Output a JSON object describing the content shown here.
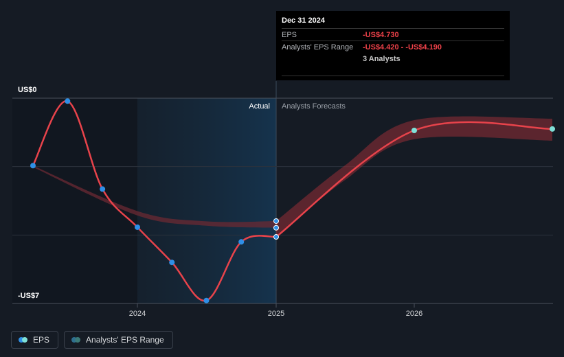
{
  "chart_data": {
    "type": "line",
    "y_top_label": "US$0",
    "y_bottom_label": "-US$7",
    "ylim": [
      -7,
      0
    ],
    "xlim": [
      "2023-04-01",
      "2026-12-31"
    ],
    "x_ticks": [
      "2024",
      "2025",
      "2026"
    ],
    "region_labels": {
      "actual": "Actual",
      "forecast": "Analysts Forecasts"
    },
    "series": [
      {
        "name": "EPS",
        "color": "#e8434b",
        "points": [
          {
            "x": "2023-03-31",
            "y": -2.3
          },
          {
            "x": "2023-06-30",
            "y": -0.1
          },
          {
            "x": "2023-09-30",
            "y": -3.1
          },
          {
            "x": "2023-12-31",
            "y": -4.4
          },
          {
            "x": "2024-03-31",
            "y": -5.6
          },
          {
            "x": "2024-06-30",
            "y": -6.9
          },
          {
            "x": "2024-09-30",
            "y": -4.9
          },
          {
            "x": "2024-12-31",
            "y": -4.73
          }
        ]
      },
      {
        "name": "EPS forecast",
        "color": "#e8434b",
        "points": [
          {
            "x": "2024-12-31",
            "y": -4.73
          },
          {
            "x": "2025-12-31",
            "y": -1.1
          },
          {
            "x": "2026-12-31",
            "y": -1.05
          }
        ]
      }
    ],
    "analyst_range": {
      "name": "Analysts' EPS Range",
      "color": "#8a2d36",
      "history": [
        {
          "x": "2023-03-31",
          "high": -2.3,
          "low": -2.35
        },
        {
          "x": "2023-12-31",
          "high": -3.85,
          "low": -4.0
        },
        {
          "x": "2024-06-30",
          "high": -4.2,
          "low": -4.35
        },
        {
          "x": "2024-12-31",
          "high": -4.19,
          "low": -4.42
        }
      ],
      "forecast": [
        {
          "x": "2024-12-31",
          "high": -4.19,
          "low": -4.73
        },
        {
          "x": "2025-06-30",
          "high": -2.3,
          "low": -2.8
        },
        {
          "x": "2025-12-31",
          "high": -0.75,
          "low": -1.4
        },
        {
          "x": "2026-12-31",
          "high": -0.7,
          "low": -1.45
        }
      ]
    },
    "highlight_points": [
      -4.19,
      -4.42,
      -4.73
    ]
  },
  "tooltip": {
    "date": "Dec 31 2024",
    "rows": [
      {
        "label": "EPS",
        "value": "-US$4.730"
      },
      {
        "label": "Analysts' EPS Range",
        "value": "-US$4.420 - -US$4.190"
      },
      {
        "label": "",
        "value": "3 Analysts"
      }
    ]
  },
  "legend": [
    {
      "label": "EPS",
      "colors": [
        "#2f8fe6",
        "#7fe0d8"
      ]
    },
    {
      "label": "Analysts' EPS Range",
      "colors": [
        "#2e6f8f",
        "#3b7a78"
      ]
    }
  ]
}
